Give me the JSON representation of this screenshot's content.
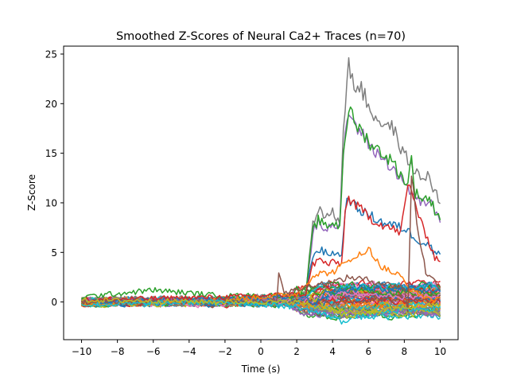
{
  "chart_data": {
    "type": "line",
    "title": "Smoothed Z-Scores of Neural Ca2+ Traces (n=70)",
    "xlabel": "Time (s)",
    "ylabel": "Z-Score",
    "xlim": [
      -11,
      11
    ],
    "ylim": [
      -3.8,
      25.8
    ],
    "xticks": [
      -10,
      -8,
      -6,
      -4,
      -2,
      0,
      2,
      4,
      6,
      8,
      10
    ],
    "xtick_labels": [
      "−10",
      "−8",
      "−6",
      "−4",
      "−2",
      "0",
      "2",
      "4",
      "6",
      "8",
      "10"
    ],
    "yticks": [
      0,
      5,
      10,
      15,
      20,
      25
    ],
    "ytick_labels": [
      "0",
      "5",
      "10",
      "15",
      "20",
      "25"
    ],
    "grid": false,
    "legend": "none",
    "trace_count": 70,
    "x_range": [
      -10,
      10
    ],
    "sample_step": 0.1,
    "palette": [
      "#1f77b4",
      "#ff7f0e",
      "#2ca02c",
      "#d62728",
      "#9467bd",
      "#8c564b",
      "#e377c2",
      "#7f7f7f",
      "#bcbd22",
      "#17becf"
    ],
    "series": [
      {
        "color": "#7f7f7f",
        "points": [
          [
            -10,
            0.3
          ],
          [
            -2,
            0.4
          ],
          [
            2.5,
            0.8
          ],
          [
            2.9,
            8.0
          ],
          [
            3.2,
            9.5
          ],
          [
            3.6,
            8.5
          ],
          [
            4.0,
            9.0
          ],
          [
            4.4,
            8.0
          ],
          [
            4.6,
            18.0
          ],
          [
            4.9,
            23.8
          ],
          [
            5.2,
            22.0
          ],
          [
            5.6,
            21.5
          ],
          [
            6.2,
            19.0
          ],
          [
            6.8,
            18.0
          ],
          [
            7.4,
            17.5
          ],
          [
            7.9,
            15.0
          ],
          [
            8.2,
            14.5
          ],
          [
            8.6,
            13.0
          ],
          [
            9.0,
            12.5
          ],
          [
            9.4,
            12.8
          ],
          [
            9.7,
            11.0
          ],
          [
            10,
            10.3
          ]
        ]
      },
      {
        "color": "#9467bd",
        "points": [
          [
            -10,
            0.1
          ],
          [
            -2,
            0.3
          ],
          [
            2.5,
            0.5
          ],
          [
            2.9,
            7.0
          ],
          [
            3.2,
            8.2
          ],
          [
            3.6,
            7.5
          ],
          [
            4.0,
            7.8
          ],
          [
            4.4,
            7.5
          ],
          [
            4.6,
            15.0
          ],
          [
            4.9,
            19.3
          ],
          [
            5.2,
            18.0
          ],
          [
            5.6,
            17.0
          ],
          [
            6.2,
            15.5
          ],
          [
            6.8,
            14.5
          ],
          [
            7.4,
            13.5
          ],
          [
            7.9,
            12.0
          ],
          [
            8.2,
            11.5
          ],
          [
            8.6,
            10.5
          ],
          [
            9.0,
            10.0
          ],
          [
            9.4,
            10.2
          ],
          [
            9.7,
            9.0
          ],
          [
            10,
            8.2
          ]
        ]
      },
      {
        "color": "#2ca02c",
        "points": [
          [
            -10,
            0.5
          ],
          [
            -6,
            1.2
          ],
          [
            -2,
            0.6
          ],
          [
            2.5,
            0.7
          ],
          [
            2.9,
            7.2
          ],
          [
            3.2,
            8.3
          ],
          [
            3.6,
            7.6
          ],
          [
            4.0,
            8.0
          ],
          [
            4.4,
            7.6
          ],
          [
            4.6,
            15.2
          ],
          [
            4.9,
            19.5
          ],
          [
            5.2,
            18.2
          ],
          [
            5.6,
            17.2
          ],
          [
            6.2,
            15.8
          ],
          [
            6.8,
            15.0
          ],
          [
            7.4,
            14.0
          ],
          [
            7.9,
            12.5
          ],
          [
            8.2,
            12.0
          ],
          [
            8.4,
            14.5
          ],
          [
            8.6,
            11.0
          ],
          [
            9.0,
            10.5
          ],
          [
            9.4,
            10.4
          ],
          [
            9.7,
            9.3
          ],
          [
            10,
            8.6
          ]
        ]
      },
      {
        "color": "#1f77b4",
        "points": [
          [
            -10,
            0.0
          ],
          [
            -2,
            0.3
          ],
          [
            2.5,
            0.6
          ],
          [
            2.9,
            4.8
          ],
          [
            3.3,
            5.3
          ],
          [
            3.7,
            4.8
          ],
          [
            4.1,
            5.0
          ],
          [
            4.5,
            4.6
          ],
          [
            4.7,
            9.5
          ],
          [
            4.9,
            10.5
          ],
          [
            5.3,
            9.5
          ],
          [
            5.8,
            9.0
          ],
          [
            6.3,
            8.5
          ],
          [
            6.8,
            8.0
          ],
          [
            7.3,
            7.8
          ],
          [
            7.8,
            7.5
          ],
          [
            8.2,
            7.2
          ],
          [
            8.6,
            6.5
          ],
          [
            9.0,
            6.0
          ],
          [
            9.4,
            5.8
          ],
          [
            9.7,
            4.8
          ],
          [
            10,
            5.2
          ]
        ]
      },
      {
        "color": "#d62728",
        "points": [
          [
            -10,
            0.2
          ],
          [
            -2,
            0.5
          ],
          [
            2.5,
            0.8
          ],
          [
            2.9,
            3.8
          ],
          [
            3.3,
            4.3
          ],
          [
            3.7,
            3.8
          ],
          [
            4.1,
            4.0
          ],
          [
            4.5,
            3.8
          ],
          [
            4.7,
            9.0
          ],
          [
            4.9,
            10.5
          ],
          [
            5.3,
            9.7
          ],
          [
            5.8,
            9.0
          ],
          [
            6.3,
            8.2
          ],
          [
            6.8,
            7.8
          ],
          [
            7.3,
            7.4
          ],
          [
            7.8,
            7.0
          ],
          [
            8.2,
            11.8
          ],
          [
            8.5,
            10.8
          ],
          [
            8.9,
            8.0
          ],
          [
            9.3,
            6.5
          ],
          [
            9.7,
            4.5
          ],
          [
            10,
            4.2
          ]
        ]
      },
      {
        "color": "#ff7f0e",
        "points": [
          [
            -10,
            -0.2
          ],
          [
            -2,
            0.2
          ],
          [
            2.0,
            0.8
          ],
          [
            3.0,
            2.8
          ],
          [
            4.0,
            3.0
          ],
          [
            4.8,
            4.0
          ],
          [
            5.3,
            4.8
          ],
          [
            5.8,
            4.6
          ],
          [
            6.0,
            5.8
          ],
          [
            6.4,
            4.2
          ],
          [
            6.8,
            3.5
          ],
          [
            7.3,
            3.0
          ],
          [
            7.8,
            2.6
          ],
          [
            8.2,
            1.5
          ],
          [
            8.6,
            1.0
          ],
          [
            9.0,
            0.6
          ],
          [
            9.5,
            0.3
          ],
          [
            10,
            0.2
          ]
        ]
      },
      {
        "color": "#8c564b",
        "points": [
          [
            -10,
            0.0
          ],
          [
            -2,
            0.0
          ],
          [
            0.9,
            0.2
          ],
          [
            1.0,
            3.2
          ],
          [
            1.3,
            1.0
          ],
          [
            2.0,
            1.2
          ],
          [
            3.0,
            1.8
          ],
          [
            4.0,
            2.0
          ],
          [
            5.0,
            2.5
          ],
          [
            6.0,
            2.2
          ],
          [
            7.0,
            1.8
          ],
          [
            8.0,
            1.5
          ],
          [
            8.2,
            -1.2
          ],
          [
            8.4,
            13.0
          ],
          [
            8.7,
            8.0
          ],
          [
            9.2,
            3.0
          ],
          [
            10,
            1.5
          ]
        ]
      },
      {
        "color": "#17becf",
        "points": [
          [
            -10,
            -0.3
          ],
          [
            -2,
            0.0
          ],
          [
            2.0,
            -0.5
          ],
          [
            3.0,
            -1.0
          ],
          [
            4.0,
            -1.5
          ],
          [
            4.5,
            -2.0
          ],
          [
            5.0,
            -1.6
          ],
          [
            6.0,
            -1.4
          ],
          [
            7.0,
            -1.0
          ],
          [
            8.0,
            -0.8
          ],
          [
            9.0,
            -0.8
          ],
          [
            10,
            -0.6
          ]
        ]
      },
      {
        "color": "#bcbd22",
        "points": [
          [
            -10,
            0.2
          ],
          [
            -2,
            0.0
          ],
          [
            2.0,
            0.0
          ],
          [
            3.0,
            -0.5
          ],
          [
            4.0,
            -0.8
          ],
          [
            5.0,
            -1.6
          ],
          [
            6.0,
            -1.0
          ],
          [
            7.0,
            -0.8
          ],
          [
            8.0,
            -0.6
          ],
          [
            9.0,
            -0.4
          ],
          [
            10,
            -0.3
          ]
        ]
      }
    ]
  }
}
